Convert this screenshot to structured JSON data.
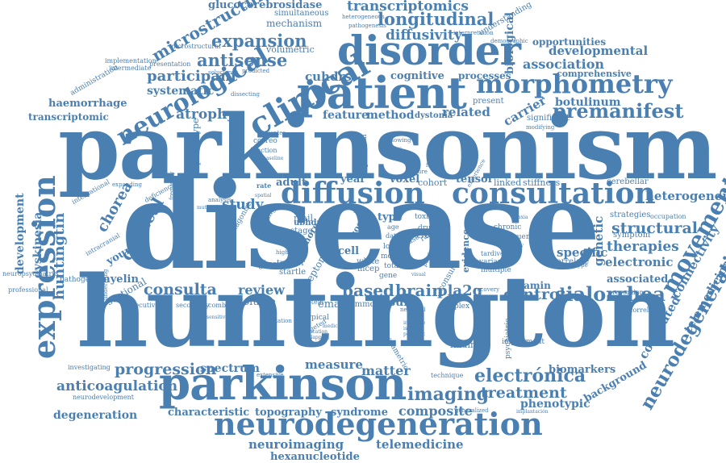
{
  "words": {
    "parkinsonism": "parkinsonism",
    "disease": "disease",
    "huntington": "huntington",
    "parkinson": "parkinson",
    "neurodegeneration": "neurodegeneration",
    "patient": "patient",
    "disorder": "disorder",
    "clinical": "clinical",
    "diffusion": "diffusion",
    "consultation": "consultation",
    "expression": "expression",
    "morphometry": "morphometry",
    "neurological": "neurological",
    "movement": "movement",
    "neurodegenerative": "neurodegenerative",
    "premanifest": "premanifest",
    "longitudinal": "longitudinal",
    "transcriptomics": "transcriptomics",
    "glucocerebrosidase": "glucocerebrosidase",
    "microstructure": "microstructure",
    "expansion": "expansion",
    "antisense": "antisense",
    "diffusivity": "diffusivity",
    "participant": "participant",
    "atrophy": "atrophy",
    "consulta": "consulta",
    "sialorrhea": "sialorrhea",
    "electronica": "electrónica",
    "imaging": "imaging",
    "treatment": "treatment",
    "progression": "progression",
    "anticoagulation": "anticoagulation",
    "neuroimaging": "neuroimaging",
    "telemedicine": "telemedicine",
    "hexanucleotide": "hexanucleotide",
    "cortical": "cortical",
    "chorea": "chorea",
    "huntingtin": "huntingtin",
    "dyskinesia": "dyskinesia",
    "development": "development",
    "degeneration": "degeneration",
    "characteristic": "characteristic",
    "topography": "topography",
    "syndrome": "syndrome",
    "composite": "composite",
    "measure": "measure",
    "matter": "matter",
    "spectrum": "spectrum",
    "biomarkers": "biomarkers",
    "phenotypic": "phenotypic",
    "background": "background",
    "correlated": "correlated",
    "telemedicina": "telemedicina",
    "connectivity": "connectivity",
    "genetic": "genetic",
    "structural": "structural",
    "therapies": "therapies",
    "specific": "specific",
    "electronic": "electronic",
    "associated": "associated",
    "vitamin": "vitamin",
    "heterogeneity": "heterogeneity",
    "botulinum": "botulinum",
    "carrier": "carrier",
    "association": "association",
    "developmental": "developmental",
    "biological": "biological",
    "opportunities": "opportunities",
    "comprehensive": "comprehensive",
    "cuhdrs": "cuhdrs",
    "cognitive": "cognitive",
    "processes": "processes",
    "related": "related",
    "feature": "feature",
    "method": "method",
    "dystonia": "dystonia",
    "haemorrhage": "haemorrhage",
    "transcriptomic": "transcriptomic",
    "systematic": "systematic",
    "mechanism": "mechanism",
    "simultaneous": "simultaneous",
    "heterogeneous": "heterogeneous",
    "pathogenesis": "pathogenesis",
    "interpretation": "interpretation",
    "understanding": "understanding",
    "demographic": "demographic",
    "volumetric": "volumetric",
    "microstructural": "microstructural",
    "implementation": "implementation",
    "intermediate": "intermediate",
    "presentation": "presentation",
    "administration": "administration",
    "soluciones": "soluciones",
    "predicted": "predicted",
    "dissecting": "dissecting",
    "present": "present",
    "significant": "significant",
    "study": "study",
    "review": "review",
    "volume": "volume",
    "result": "result",
    "control": "control",
    "brain": "brain",
    "based": "based",
    "pla2g": "pla2g",
    "voxel": "voxel",
    "tensor": "tensor",
    "year": "year",
    "adult": "adult",
    "cohort": "cohort",
    "linked": "linked",
    "stiffness": "stiffness",
    "cerebellar": "cerebellar",
    "strategies": "strategies",
    "occupation": "occupation",
    "symptom": "symptom",
    "myelin": "myelin",
    "young": "young",
    "sectional": "sectional",
    "pathogenic": "pathogenic",
    "neuropsychiatric": "neuropsychiatric",
    "professional": "professional",
    "consecutive": "consecutive",
    "secondary": "secondary",
    "combined": "combined",
    "email": "email",
    "common": "common",
    "protein": "protein",
    "receptor": "receptor",
    "glycine": "glycine",
    "tremor": "tremor",
    "startle": "startle",
    "mcep": "mcep",
    "white": "white",
    "cross": "cross",
    "mail": "mail",
    "type": "type",
    "toxin": "toxin",
    "drug": "drug",
    "case": "case",
    "range": "range",
    "cell": "cell",
    "chronic": "chronic",
    "frequent": "frequent",
    "variant": "variant",
    "multiple": "multiple",
    "correlate": "correlate",
    "tardive": "tardive",
    "genotype": "genotype",
    "prevention": "prevention",
    "correlation": "correlation",
    "implantacion": "implantación",
    "impairment": "impairment",
    "technique": "technique",
    "generalized": "generalized",
    "finding": "finding",
    "investigating": "investigating",
    "neurodevelopment": "neurodevelopment",
    "extensive": "extensive",
    "mutation": "mutation",
    "atypical": "atypical",
    "targeted": "targeted",
    "recovery": "recovery",
    "complex": "complex",
    "neuronal": "neuronal",
    "phenotype": "phenotype",
    "expanding": "expanding",
    "international": "international",
    "frequency": "frequency",
    "deficiency": "deficiency",
    "multiparametric": "multiparametric",
    "psychiatric": "psychiatric",
    "evidence": "evidence",
    "experience": "experience",
    "family": "family",
    "future": "future",
    "potential": "potential",
    "analysis": "analysis",
    "underlying": "underlying",
    "intracranial": "intracranial",
    "antidopaminergic": "antidopaminergic",
    "antagonist": "antagonist",
    "change": "change",
    "stage": "stage",
    "pacientes": "pacientes",
    "correo": "correo",
    "function": "function",
    "baseline": "baseline",
    "loss": "loss",
    "mutant": "mutant",
    "sensitive": "sensitive",
    "higher": "higher",
    "spatial": "spatial",
    "rate": "rate",
    "ataxia": "ataxia",
    "proximity": "proximity",
    "showing": "showing",
    "modifying": "modifying",
    "ubhdrs": "ubhdrs",
    "cost": "cost",
    "new": "new",
    "set": "set",
    "total": "total",
    "more": "more",
    "most": "most",
    "visual": "visual",
    "ethics": "ethics",
    "gene": "gene",
    "trial": "trial",
    "consult": "consult",
    "profile": "profile",
    "medical": "medical",
    "interface": "interface",
    "implication": "implication",
    "overlapping": "overlapping",
    "isolated": "isolated",
    "pediatric": "pediatric",
    "sample": "sample",
    "data": "data",
    "age": "age"
  }
}
